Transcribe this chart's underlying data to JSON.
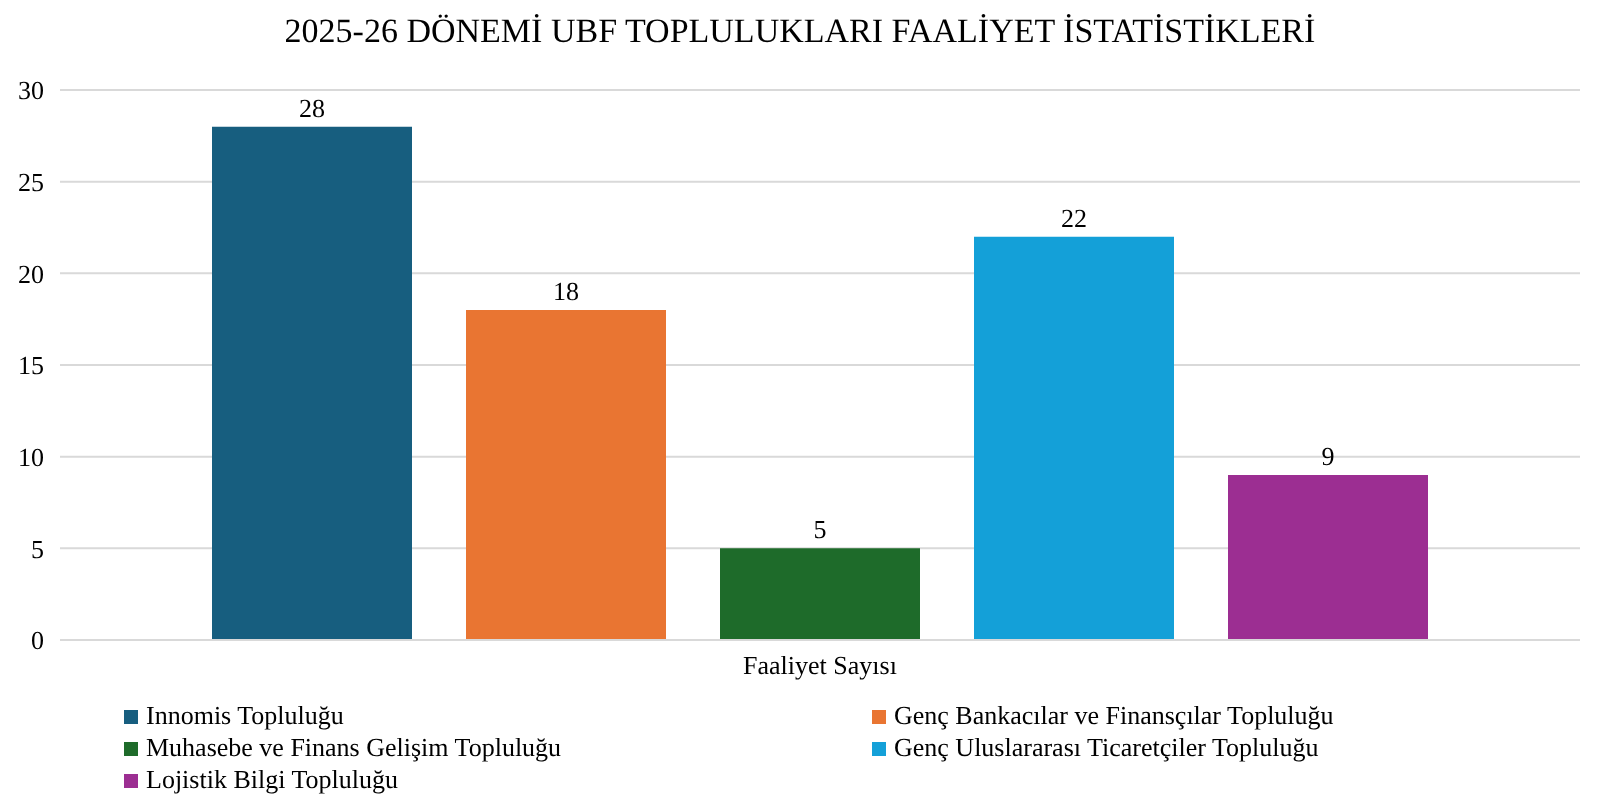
{
  "chart_data": {
    "type": "bar",
    "title": "2025-26 DÖNEMİ UBF TOPLULUKLARI FAALİYET İSTATİSTİKLERİ",
    "categories": [
      "Faaliyet Sayısı"
    ],
    "series": [
      {
        "name": "Innomis Topluluğu",
        "color": "#175e7f",
        "values": [
          28
        ]
      },
      {
        "name": "Genç Bankacılar ve Finansçılar Topluluğu",
        "color": "#e97532",
        "values": [
          18
        ]
      },
      {
        "name": "Muhasebe ve Finans Gelişim Topluluğu",
        "color": "#1e6b2a",
        "values": [
          5
        ]
      },
      {
        "name": "Genç Uluslararası Ticaretçiler Topluluğu",
        "color": "#14a0d8",
        "values": [
          22
        ]
      },
      {
        "name": "Lojistik Bilgi Topluluğu",
        "color": "#9c2e92",
        "values": [
          9
        ]
      }
    ],
    "ylim": [
      0,
      30
    ],
    "yticks": [
      0,
      5,
      10,
      15,
      20,
      25,
      30
    ],
    "grid": "y",
    "legend": "bottom",
    "data_labels": true
  }
}
